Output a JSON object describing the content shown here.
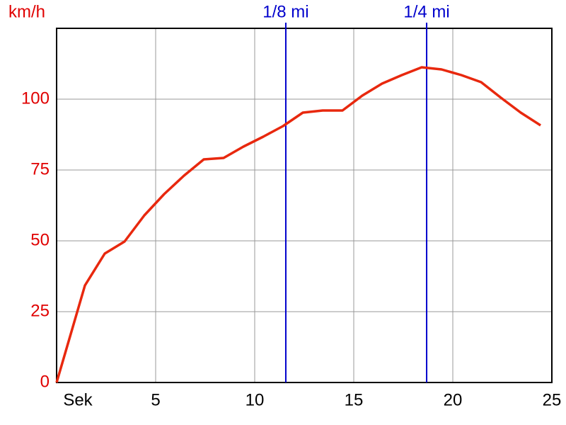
{
  "chart_data": {
    "type": "line",
    "y_label": "km/h",
    "x": [
      0,
      1.43,
      2.43,
      3.43,
      4.43,
      5.43,
      6.43,
      7.43,
      8.43,
      9.43,
      10.43,
      11.43,
      12.43,
      13.43,
      14.43,
      15.43,
      16.43,
      17.43,
      18.43,
      19.43,
      20.43,
      21.43,
      22.43,
      23.43,
      24.43
    ],
    "series": [
      {
        "color": "#e8280e",
        "values": [
          0,
          34.25,
          45.5,
          49.75,
          59,
          66.5,
          73,
          78.75,
          79.25,
          83.25,
          86.75,
          90.5,
          95.25,
          96,
          96,
          101.25,
          105.5,
          108.5,
          111.25,
          110.5,
          108.5,
          106,
          100.5,
          95.25,
          90.75
        ]
      }
    ],
    "xlim": [
      0,
      25
    ],
    "ylim": [
      0,
      125
    ],
    "xticks": [
      {
        "value": 0,
        "label": "Sek"
      },
      5,
      10,
      15,
      20,
      25
    ],
    "yticks": [
      0,
      25,
      50,
      75,
      100
    ],
    "grid": true,
    "markers": [
      {
        "label": "1/8 mi",
        "value": 11.57
      },
      {
        "label": "1/4 mi",
        "value": 18.68
      }
    ],
    "marker_color": "#0000cc",
    "y_tick_color": "#e00000"
  }
}
